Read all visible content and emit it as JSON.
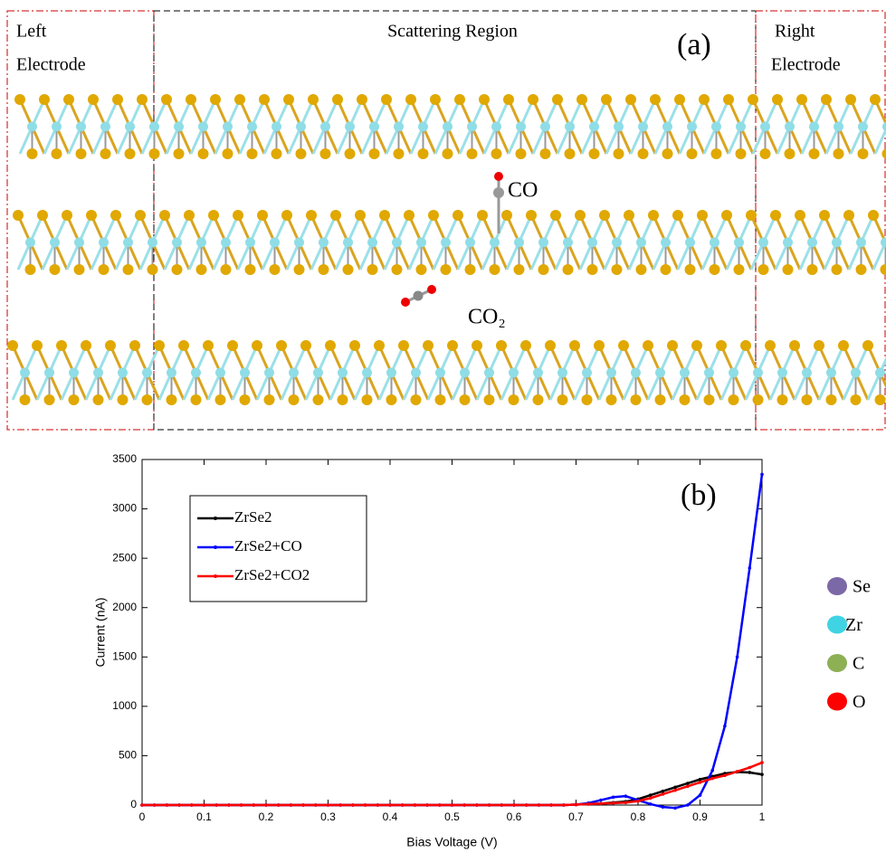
{
  "structure": {
    "left_electrode": [
      "Left",
      "Electrode"
    ],
    "scattering_region": "Scattering Region",
    "panel_label": "(a)",
    "right_electrode": [
      "Right",
      "Electrode"
    ],
    "co_label": "CO",
    "co2_label": "CO₂"
  },
  "chart_data": {
    "type": "line",
    "panel_label": "(b)",
    "x_label": "Bias Voltage (V)",
    "y_label": "Current (nA)",
    "x": [
      0,
      0.02,
      0.04,
      0.06,
      0.08,
      0.1,
      0.12,
      0.14,
      0.16,
      0.18,
      0.2,
      0.22,
      0.24,
      0.26,
      0.28,
      0.3,
      0.32,
      0.34,
      0.36,
      0.38,
      0.4,
      0.42,
      0.44,
      0.46,
      0.48,
      0.5,
      0.52,
      0.54,
      0.56,
      0.58,
      0.6,
      0.62,
      0.64,
      0.66,
      0.68,
      0.7,
      0.72,
      0.74,
      0.76,
      0.78,
      0.8,
      0.82,
      0.84,
      0.86,
      0.88,
      0.9,
      0.92,
      0.94,
      0.96,
      0.98,
      1
    ],
    "series": [
      {
        "name": "ZrSe2",
        "color": "#000000",
        "values": [
          0,
          0,
          0,
          0,
          0,
          0,
          0,
          0,
          0,
          0,
          0,
          0,
          0,
          0,
          0,
          0,
          0,
          0,
          0,
          0,
          0,
          0,
          0,
          0,
          0,
          0,
          0,
          0,
          0,
          0,
          0,
          0,
          0,
          0,
          0,
          5,
          10,
          15,
          25,
          35,
          60,
          100,
          140,
          180,
          220,
          260,
          290,
          320,
          335,
          330,
          310
        ]
      },
      {
        "name": "ZrSe2+CO",
        "color": "#0000ff",
        "values": [
          0,
          0,
          0,
          0,
          0,
          0,
          0,
          0,
          0,
          0,
          0,
          0,
          0,
          0,
          0,
          0,
          0,
          0,
          0,
          0,
          0,
          0,
          0,
          0,
          0,
          0,
          0,
          0,
          0,
          0,
          0,
          0,
          0,
          0,
          0,
          5,
          20,
          50,
          80,
          90,
          50,
          10,
          -20,
          -30,
          0,
          100,
          350,
          800,
          1500,
          2400,
          3350
        ]
      },
      {
        "name": "ZrSe2+CO2",
        "color": "#ff0000",
        "values": [
          0,
          0,
          0,
          0,
          0,
          0,
          0,
          0,
          0,
          0,
          0,
          0,
          0,
          0,
          0,
          0,
          0,
          0,
          0,
          0,
          0,
          0,
          0,
          0,
          0,
          0,
          0,
          0,
          0,
          0,
          0,
          0,
          0,
          0,
          0,
          5,
          10,
          15,
          20,
          25,
          40,
          70,
          110,
          150,
          190,
          230,
          270,
          300,
          340,
          380,
          430
        ]
      }
    ],
    "xlim": [
      0,
      1
    ],
    "xticks": [
      0,
      0.1,
      0.2,
      0.3,
      0.4,
      0.5,
      0.6,
      0.7,
      0.8,
      0.9,
      1
    ],
    "ylim": [
      0,
      3500
    ],
    "yticks": [
      0,
      500,
      1000,
      1500,
      2000,
      2500,
      3000,
      3500
    ],
    "grid": false,
    "legend": "upper left"
  },
  "element_legend": [
    {
      "name": "Se",
      "color": "#7b68a6"
    },
    {
      "name": "Zr",
      "color": "#3fd3e3"
    },
    {
      "name": "C",
      "color": "#8db054"
    },
    {
      "name": "O",
      "color": "#ff0000"
    }
  ]
}
